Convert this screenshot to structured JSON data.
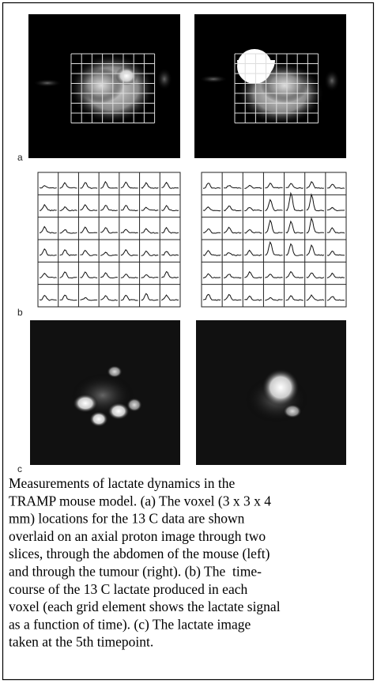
{
  "figure": {
    "panel_labels": [
      "a",
      "b",
      "c"
    ],
    "caption_lines": [
      "Measurements of lactate dynamics in the",
      "TRAMP mouse model. (a) The voxel (3 x 3 x 4",
      "mm) locations for the 13 C data are shown",
      "overlaid on an axial proton image through two",
      "slices, through the abdomen of the mouse (left)",
      "and through the tumour (right). (b) The  time-",
      "course of the 13 C lactate produced in each",
      "voxel (each grid element shows the lactate signal",
      "as a function of time). (c) The lactate image",
      "taken at the 5th timepoint."
    ]
  }
}
